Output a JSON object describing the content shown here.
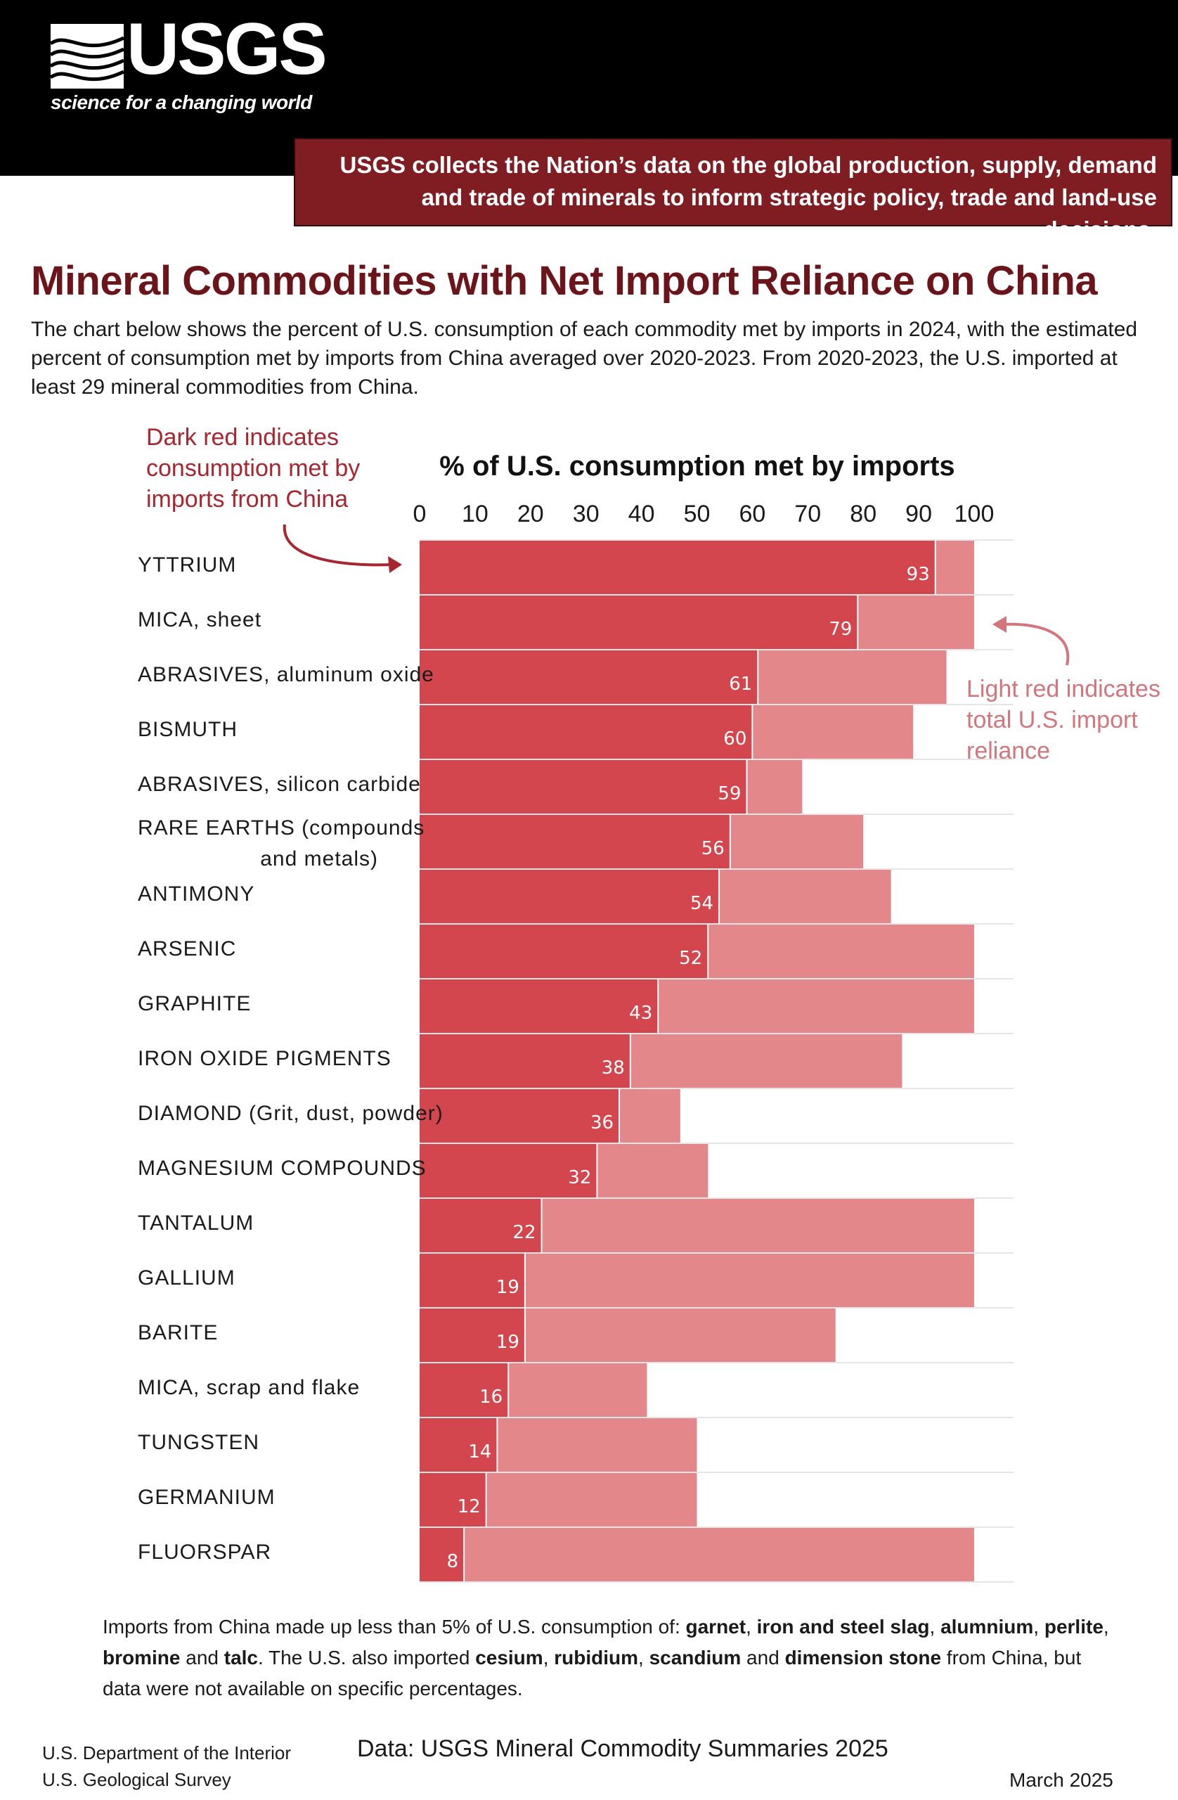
{
  "logo": {
    "text": "USGS",
    "tagline": "science for a changing world"
  },
  "banner": {
    "text": "USGS collects the Nation’s data on the global production, supply, demand and trade of minerals to inform strategic policy, trade and land-use decisions."
  },
  "title": "Mineral Commodities with Net Import Reliance on China",
  "intro": "The chart below shows the percent of U.S. consumption of each commodity met by imports in 2024, with the estimated percent of consumption met by imports from China averaged over 2020-2023. From 2020-2023, the U.S. imported at least 29 mineral commodities from China.",
  "annotations": {
    "dark": "Dark red indicates consumption met by imports from China",
    "light": "Light red indicates total U.S. import reliance"
  },
  "chart_data": {
    "type": "bar",
    "orientation": "horizontal",
    "xlabel": "% of U.S. consumption met by imports",
    "xticks": [
      "0",
      "10",
      "20",
      "30",
      "40",
      "50",
      "60",
      "70",
      "80",
      "90",
      "100"
    ],
    "xlim": [
      0,
      100
    ],
    "categories": [
      "YTTRIUM",
      "MICA, sheet",
      "ABRASIVES, aluminum oxide",
      "BISMUTH",
      "ABRASIVES, silicon carbide",
      "RARE EARTHS (compounds and metals)",
      "ANTIMONY",
      "ARSENIC",
      "GRAPHITE",
      "IRON OXIDE PIGMENTS",
      "DIAMOND (Grit, dust, powder)",
      "MAGNESIUM COMPOUNDS",
      "TANTALUM",
      "GALLIUM",
      "BARITE",
      "MICA, scrap and flake",
      "TUNGSTEN",
      "GERMANIUM",
      "FLUORSPAR"
    ],
    "series": [
      {
        "name": "Dark red indicates consumption met by imports from China",
        "color": "#d4464e",
        "values": [
          93,
          79,
          61,
          60,
          59,
          56,
          54,
          52,
          43,
          38,
          36,
          32,
          22,
          19,
          19,
          16,
          14,
          12,
          8
        ]
      },
      {
        "name": "Light red indicates total U.S. import reliance",
        "color": "#e4878b",
        "values": [
          100,
          100,
          95,
          89,
          69,
          80,
          85,
          100,
          100,
          87,
          47,
          52,
          100,
          100,
          75,
          41,
          50,
          50,
          100
        ]
      }
    ],
    "data_labels": [
      "93",
      "79",
      "61",
      "60",
      "59",
      "56",
      "54",
      "52",
      "43",
      "38",
      "36",
      "32",
      "22",
      "19",
      "19",
      "16",
      "14",
      "12",
      "8"
    ],
    "grid": true
  },
  "footnote": {
    "t1": "Imports from China made up less than 5% of U.S. consumption of: ",
    "garnet": "garnet",
    "t2": ", ",
    "slag": "iron and steel slag",
    "t3": ", ",
    "aluminum": "alumnium",
    "t4": ", ",
    "perlite": "perlite",
    "t5": ", ",
    "bromine": "bromine",
    "t6": " and ",
    "talc": "talc",
    "t7": ". The U.S. also imported ",
    "cesium": "cesium",
    "t8": ", ",
    "rubidium": "rubidium",
    "t9": ", ",
    "scandium": "scandium",
    "t10": " and ",
    "stone": "dimension stone",
    "t11": " from China, but data were not available on specific percentages."
  },
  "source": "Data: USGS Mineral Commodity Summaries 2025",
  "department": {
    "line1": "U.S. Department of the Interior",
    "line2": "U.S. Geological Survey"
  },
  "date": "March 2025"
}
